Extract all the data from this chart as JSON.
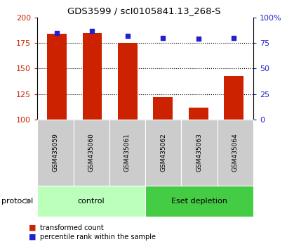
{
  "title": "GDS3599 / scI0105841.13_268-S",
  "categories": [
    "GSM435059",
    "GSM435060",
    "GSM435061",
    "GSM435062",
    "GSM435063",
    "GSM435064"
  ],
  "red_values": [
    184,
    185,
    175,
    122,
    112,
    143
  ],
  "blue_values": [
    85,
    87,
    82,
    80,
    79,
    80
  ],
  "ylim_left": [
    100,
    200
  ],
  "ylim_right": [
    0,
    100
  ],
  "yticks_left": [
    100,
    125,
    150,
    175,
    200
  ],
  "yticks_right": [
    0,
    25,
    50,
    75,
    100
  ],
  "ytick_labels_right": [
    "0",
    "25",
    "50",
    "75",
    "100%"
  ],
  "bar_color": "#cc2200",
  "dot_color": "#2222cc",
  "bar_width": 0.55,
  "label_bg_color": "#cccccc",
  "groups": [
    {
      "label": "control",
      "indices": [
        0,
        1,
        2
      ],
      "color": "#bbffbb"
    },
    {
      "label": "Eset depletion",
      "indices": [
        3,
        4,
        5
      ],
      "color": "#44cc44"
    }
  ],
  "legend_red_label": "transformed count",
  "legend_blue_label": "percentile rank within the sample",
  "protocol_label": "protocol",
  "gridline_ticks": [
    125,
    150,
    175
  ]
}
